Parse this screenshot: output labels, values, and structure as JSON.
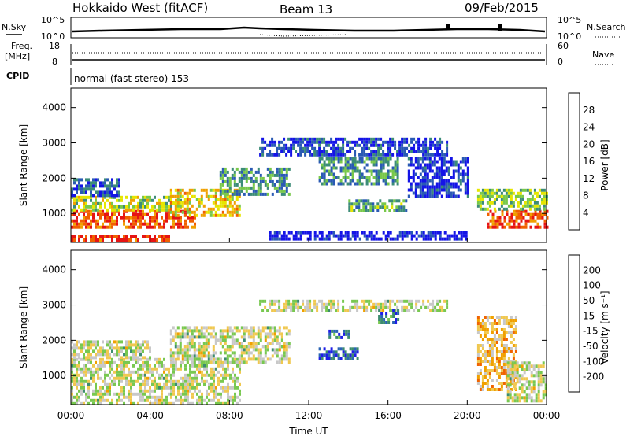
{
  "header": {
    "radar": "Hokkaido West (fitACF)",
    "beam": "Beam 13",
    "date": "09/Feb/2015"
  },
  "status": {
    "nsky_label": "N.Sky",
    "nsearch_label": "N.Search",
    "nsky_ticks": [
      "10^5",
      "10^0"
    ],
    "nsearch_ticks": [
      "10^5",
      "10^0"
    ],
    "freq_label_1": "Freq.",
    "freq_label_2": "[MHz]",
    "freq_ticks": [
      "18",
      "8"
    ],
    "nave_label": "Nave",
    "nave_ticks": [
      "60",
      "0"
    ],
    "cpid_label": "CPID",
    "cpid_text": "normal (fast stereo) 153"
  },
  "chart_data": [
    {
      "type": "heatmap",
      "panel": "power",
      "ylabel": "Slant Range [km]",
      "xlabel": "",
      "ylim": [
        180,
        4550
      ],
      "yticks": [
        "1000",
        "2000",
        "3000",
        "4000"
      ],
      "colorbar_label": "Power [dB]",
      "colorbar_ticks": [
        "4",
        "8",
        "12",
        "16",
        "20",
        "24",
        "28"
      ],
      "colors": [
        "#1414e6",
        "#2a5ab4",
        "#3c8c78",
        "#78c84a",
        "#e6e600",
        "#f0a000",
        "#f06000",
        "#e61414"
      ],
      "regions": [
        {
          "x0": 0.0,
          "x1": 6.2,
          "y0": 600,
          "y1": 1100,
          "level": 0.85
        },
        {
          "x0": 0.0,
          "x1": 5.5,
          "y0": 1100,
          "y1": 1500,
          "level": 0.5
        },
        {
          "x0": 0.0,
          "x1": 2.5,
          "y0": 1500,
          "y1": 2000,
          "level": 0.2
        },
        {
          "x0": 0.0,
          "x1": 5.0,
          "y0": 280,
          "y1": 380,
          "level": 0.9
        },
        {
          "x0": 5.0,
          "x1": 8.5,
          "y0": 900,
          "y1": 1700,
          "level": 0.6
        },
        {
          "x0": 7.5,
          "x1": 11.0,
          "y0": 1500,
          "y1": 2300,
          "level": 0.3
        },
        {
          "x0": 9.5,
          "x1": 19.0,
          "y0": 2700,
          "y1": 3150,
          "level": 0.15
        },
        {
          "x0": 12.5,
          "x1": 16.5,
          "y0": 1800,
          "y1": 2600,
          "level": 0.3
        },
        {
          "x0": 14.0,
          "x1": 17.0,
          "y0": 1100,
          "y1": 1400,
          "level": 0.35
        },
        {
          "x0": 10.0,
          "x1": 20.0,
          "y0": 250,
          "y1": 500,
          "level": 0.05
        },
        {
          "x0": 17.0,
          "x1": 20.0,
          "y0": 1500,
          "y1": 2600,
          "level": 0.1
        },
        {
          "x0": 21.0,
          "x1": 24.0,
          "y0": 600,
          "y1": 1100,
          "level": 0.85
        },
        {
          "x0": 20.5,
          "x1": 24.0,
          "y0": 1100,
          "y1": 1700,
          "level": 0.45
        }
      ]
    },
    {
      "type": "heatmap",
      "panel": "velocity",
      "ylabel": "Slant Range [km]",
      "xlabel": "Time UT",
      "ylim": [
        180,
        4550
      ],
      "yticks": [
        "1000",
        "2000",
        "3000",
        "4000"
      ],
      "x_ticks": [
        "00:00",
        "04:00",
        "08:00",
        "12:00",
        "16:00",
        "20:00",
        "00:00"
      ],
      "colorbar_label": "Velocity [m s⁻¹]",
      "colorbar_ticks": [
        "200",
        "100",
        "50",
        "15",
        "-15",
        "-50",
        "-100",
        "-200"
      ],
      "colors": [
        "#1e1ee6",
        "#2a64b4",
        "#3c8c6e",
        "#78c850",
        "#c8c8c8",
        "#f0c850",
        "#f0a000",
        "#f06400",
        "#e61414"
      ],
      "regions": [
        {
          "x0": 0.0,
          "x1": 8.5,
          "y0": 250,
          "y1": 1500,
          "level": 0.5
        },
        {
          "x0": 0.0,
          "x1": 4.0,
          "y0": 1500,
          "y1": 2000,
          "level": 0.5
        },
        {
          "x0": 5.0,
          "x1": 11.0,
          "y0": 1400,
          "y1": 2400,
          "level": 0.5
        },
        {
          "x0": 9.5,
          "x1": 19.0,
          "y0": 2800,
          "y1": 3150,
          "level": 0.5
        },
        {
          "x0": 12.5,
          "x1": 14.5,
          "y0": 1500,
          "y1": 1800,
          "level": 0.85
        },
        {
          "x0": 15.5,
          "x1": 16.5,
          "y0": 2500,
          "y1": 2900,
          "level": 0.8
        },
        {
          "x0": 13.0,
          "x1": 14.0,
          "y0": 2100,
          "y1": 2300,
          "level": 0.75
        },
        {
          "x0": 20.5,
          "x1": 22.5,
          "y0": 600,
          "y1": 2700,
          "level": 0.35
        },
        {
          "x0": 22.0,
          "x1": 24.0,
          "y0": 300,
          "y1": 1400,
          "level": 0.5
        }
      ]
    }
  ]
}
